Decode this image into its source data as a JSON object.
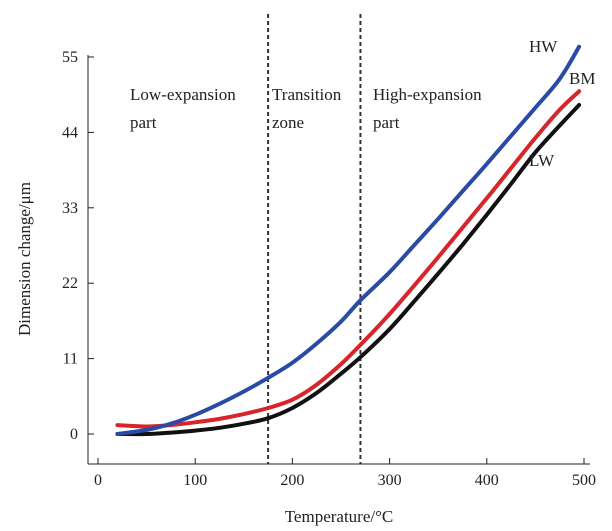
{
  "chart_data": {
    "type": "line",
    "title": "",
    "xlabel": "Temperature/°C",
    "ylabel": "Dimension change/μm",
    "xlim": [
      0,
      500
    ],
    "ylim": [
      -4,
      59
    ],
    "xticks": [
      0,
      100,
      200,
      300,
      400,
      500
    ],
    "yticks": [
      0,
      11,
      22,
      33,
      44,
      55
    ],
    "grid": false,
    "legend": "series names labeled at line ends (right)",
    "vertical_dashed_lines": [
      175,
      270
    ],
    "regions": [
      {
        "label_lines": [
          "Low-expansion",
          "part"
        ]
      },
      {
        "label_lines": [
          "Transition",
          "zone"
        ]
      },
      {
        "label_lines": [
          "High-expansion",
          "part"
        ]
      }
    ],
    "series": [
      {
        "name": "HW",
        "color": "#2b4aa6",
        "x": [
          20,
          50,
          75,
          100,
          125,
          150,
          175,
          200,
          225,
          250,
          270,
          300,
          325,
          350,
          375,
          400,
          425,
          450,
          475,
          495
        ],
        "y": [
          0,
          0.6,
          1.5,
          2.8,
          4.4,
          6.2,
          8.2,
          10.4,
          13.2,
          16.4,
          19.5,
          23.6,
          27.5,
          31.4,
          35.4,
          39.4,
          43.5,
          47.6,
          51.8,
          56.5
        ]
      },
      {
        "name": "BM",
        "color": "#d8242b",
        "x": [
          20,
          50,
          75,
          100,
          125,
          150,
          175,
          200,
          225,
          250,
          270,
          300,
          325,
          350,
          375,
          400,
          425,
          450,
          475,
          495
        ],
        "y": [
          1.3,
          1.1,
          1.3,
          1.7,
          2.2,
          2.9,
          3.8,
          5.0,
          7.2,
          10.2,
          13.0,
          17.5,
          21.6,
          25.8,
          30.1,
          34.4,
          38.8,
          43.2,
          47.3,
          50.0
        ]
      },
      {
        "name": "LW",
        "color": "#111111",
        "x": [
          20,
          50,
          75,
          100,
          125,
          150,
          175,
          200,
          225,
          250,
          270,
          300,
          325,
          350,
          375,
          400,
          425,
          450,
          475,
          495
        ],
        "y": [
          0,
          0,
          0.2,
          0.5,
          0.9,
          1.5,
          2.3,
          3.8,
          6.0,
          8.8,
          11.2,
          15.3,
          19.3,
          23.4,
          27.6,
          32.0,
          36.5,
          41.1,
          45.0,
          48.0
        ]
      }
    ]
  }
}
